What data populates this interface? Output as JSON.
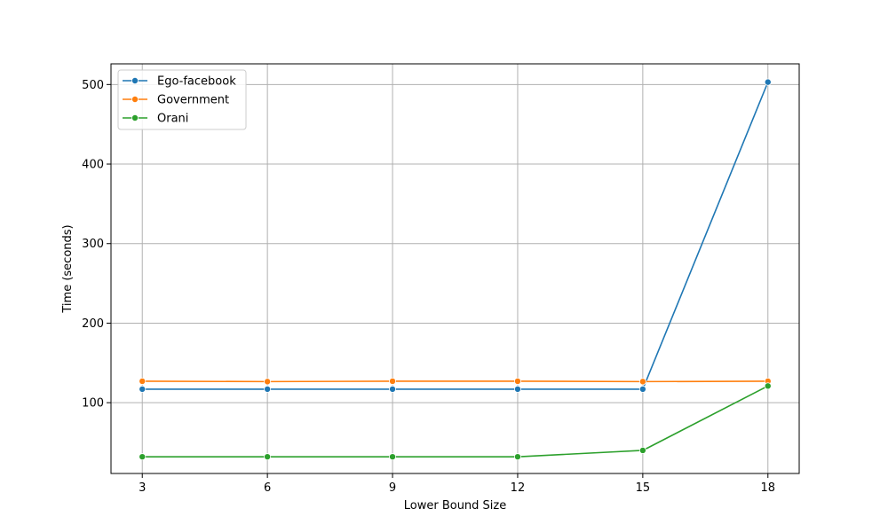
{
  "chart_data": {
    "type": "line",
    "title": "",
    "xlabel": "Lower Bound Size",
    "ylabel": "Time (seconds)",
    "x": [
      3,
      6,
      9,
      12,
      15,
      18
    ],
    "xticks": [
      "3",
      "6",
      "9",
      "12",
      "15",
      "18"
    ],
    "yticks": [
      "100",
      "200",
      "300",
      "400",
      "500"
    ],
    "xlim": [
      2.25,
      18.75
    ],
    "ylim": [
      11,
      526
    ],
    "grid": true,
    "legend_position": "top-left",
    "series": [
      {
        "name": "Ego-facebook",
        "color": "#1f77b4",
        "values": [
          117,
          117,
          117,
          117,
          117,
          503
        ]
      },
      {
        "name": "Government",
        "color": "#ff7f0e",
        "values": [
          127,
          126.5,
          127,
          127,
          126.5,
          127
        ]
      },
      {
        "name": "Orani",
        "color": "#2ca02c",
        "values": [
          32,
          32,
          32,
          32,
          40,
          121
        ]
      }
    ]
  }
}
